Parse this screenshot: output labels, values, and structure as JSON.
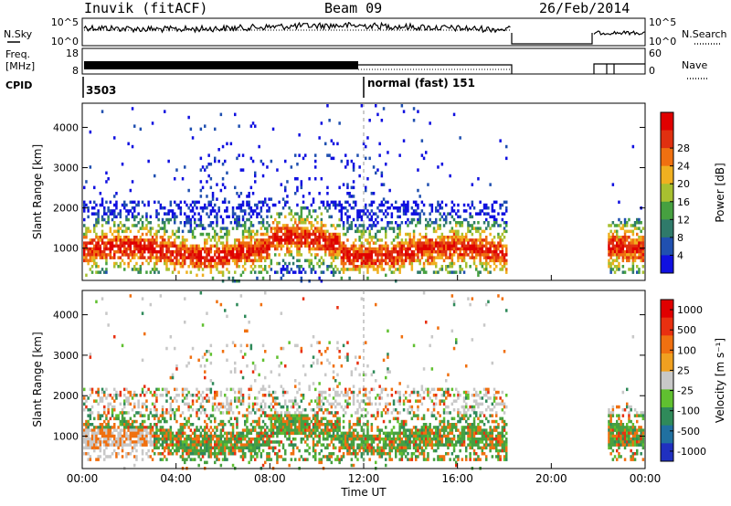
{
  "header": {
    "station": "Inuvik (fitACF)",
    "beam": "Beam 09",
    "date": "26/Feb/2014"
  },
  "chart_data": [
    {
      "type": "line",
      "panel": "noise",
      "left_label": "N.Sky",
      "right_label": "N.Search",
      "left_ticks": [
        "10^5",
        "10^0"
      ],
      "right_ticks": [
        "10^5",
        "10^0"
      ]
    },
    {
      "type": "line",
      "panel": "frequency",
      "left_label_lines": [
        "Freq.",
        "[MHz]"
      ],
      "right_label": "Nave",
      "left_ticks": [
        "18",
        "8"
      ],
      "right_ticks": [
        "60",
        "0"
      ]
    },
    {
      "type": "table",
      "panel": "cpid",
      "label": "CPID",
      "entries": [
        {
          "text": "3503",
          "start_hour": 0
        },
        {
          "text": "normal (fast) 151",
          "start_hour": 12
        }
      ]
    },
    {
      "type": "heatmap",
      "panel": "power",
      "ylabel": "Slant Range [km]",
      "ylim": [
        200,
        4600
      ],
      "yticks": [
        "1000",
        "2000",
        "3000",
        "4000"
      ],
      "xlim": [
        0,
        24
      ],
      "colorbar": {
        "label": "Power [dB]",
        "ticks": [
          "4",
          "8",
          "12",
          "16",
          "20",
          "24",
          "28"
        ],
        "colors": [
          "#1010e0",
          "#2050b0",
          "#2f7a6a",
          "#46a040",
          "#a8c030",
          "#f0b020",
          "#f07010",
          "#e03010",
          "#e00000"
        ]
      }
    },
    {
      "type": "heatmap",
      "panel": "velocity",
      "ylabel": "Slant Range [km]",
      "ylim": [
        200,
        4600
      ],
      "yticks": [
        "1000",
        "2000",
        "3000",
        "4000"
      ],
      "xlim": [
        0,
        24
      ],
      "xlabel": "Time UT",
      "xticks": [
        "00:00",
        "04:00",
        "08:00",
        "12:00",
        "16:00",
        "20:00",
        "00:00"
      ],
      "colorbar": {
        "label": "Velocity [m s⁻¹]",
        "ticks": [
          "1000",
          "500",
          "100",
          "25",
          "-25",
          "-100",
          "-500",
          "-1000"
        ],
        "colors": [
          "#2030c0",
          "#2070a0",
          "#2f8a5a",
          "#60c030",
          "#c8c8c8",
          "#f0a020",
          "#f07010",
          "#e83010",
          "#e00000"
        ]
      }
    }
  ]
}
